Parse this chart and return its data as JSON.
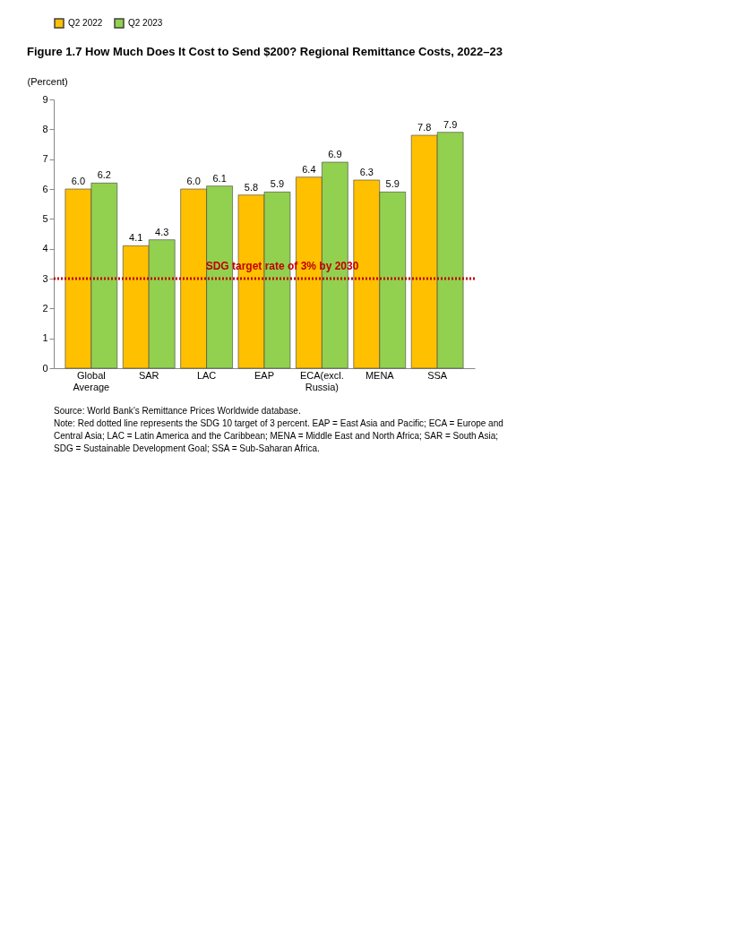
{
  "chart_data": {
    "type": "bar",
    "title": "Figure 1.7 How Much Does It Cost to Send $200? Regional Remittance Costs, 2022–23",
    "ylabel": "(Percent)",
    "categories": [
      "Global Average",
      "SAR",
      "LAC",
      "EAP",
      "ECA(excl. Russia)",
      "MENA",
      "SSA"
    ],
    "series": [
      {
        "name": "Q2 2022",
        "color": "#ffc000",
        "values": [
          6.0,
          4.1,
          6.0,
          5.8,
          6.4,
          6.3,
          7.8
        ],
        "value_labels": [
          "6.0",
          "4.1",
          "6.0",
          "5.8",
          "6.4",
          "6.3",
          "7.8"
        ]
      },
      {
        "name": "Q2 2023",
        "color": "#92d050",
        "values": [
          6.2,
          4.3,
          6.1,
          5.9,
          6.9,
          5.9,
          7.9
        ],
        "value_labels": [
          "6.2",
          "4.3",
          "6.1",
          "5.9",
          "6.9",
          "5.9",
          "7.9"
        ]
      }
    ],
    "ylim": [
      0,
      9
    ],
    "yticks": [
      0,
      1,
      2,
      3,
      4,
      5,
      6,
      7,
      8,
      9
    ],
    "grid": false,
    "legend": "top",
    "ref_lines": [
      {
        "axis": "y",
        "value": 3,
        "label": "SDG target rate of 3% by 2030",
        "color": "#c00000",
        "line_style": "dotted"
      }
    ],
    "annotations": [
      "Source: World Bank’s Remittance Prices Worldwide database.",
      "Note: Red dotted line represents the SDG 10 target of 3 percent. EAP = East Asia and Pacific; ECA = Europe and Central Asia; LAC = Latin America and the Caribbean; MENA = Middle East and North Africa; SAR = South Asia; SDG = Sustainable Development Goal; SSA = Sub-Saharan Africa."
    ]
  }
}
